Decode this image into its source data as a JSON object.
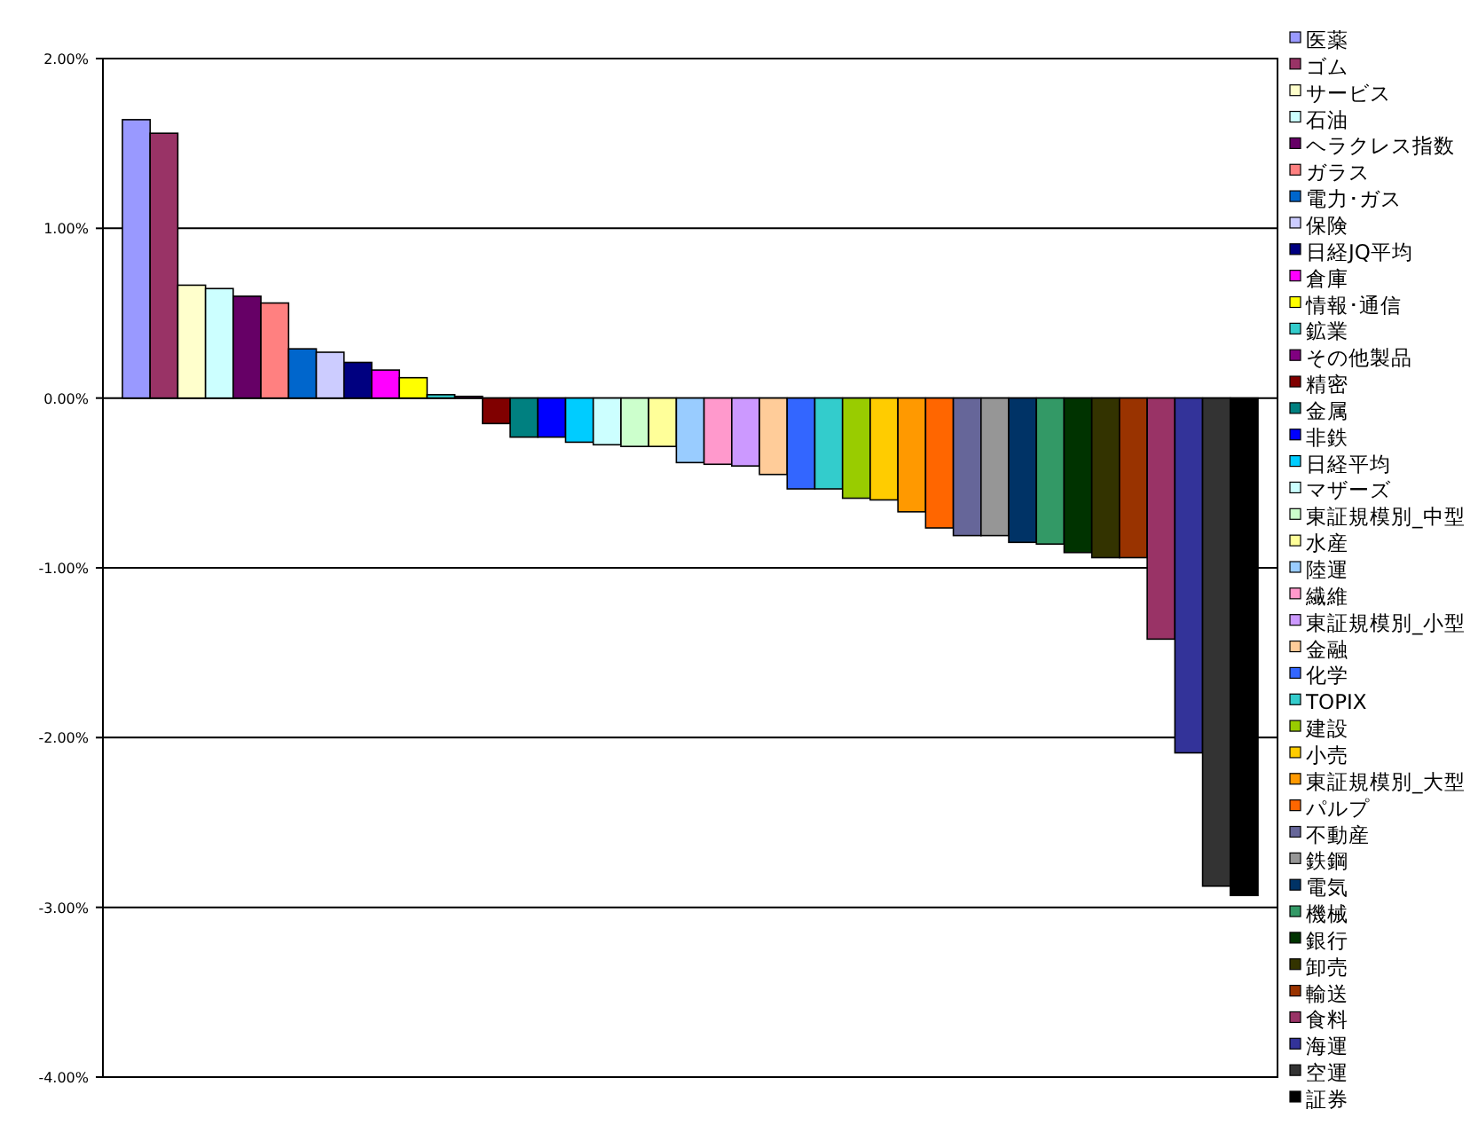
{
  "chart_data": {
    "type": "bar",
    "categories": [
      null
    ],
    "ylim": [
      -4,
      2
    ],
    "yticks": [
      {
        "value": -4,
        "label": "-4.00%"
      },
      {
        "value": -3,
        "label": "-3.00%"
      },
      {
        "value": -2,
        "label": "-2.00%"
      },
      {
        "value": -1,
        "label": "-1.00%"
      },
      {
        "value": 0,
        "label": "0.00%"
      },
      {
        "value": 1,
        "label": "1.00%"
      },
      {
        "value": 2,
        "label": "2.00%"
      }
    ],
    "grid": "y",
    "legend": "right",
    "tick_labels": "y",
    "series": [
      {
        "name": "医薬",
        "color": "#9999ff",
        "values": [
          1.64
        ]
      },
      {
        "name": "ゴム",
        "color": "#993366",
        "values": [
          1.56
        ]
      },
      {
        "name": "サービス",
        "color": "#ffffcc",
        "values": [
          0.665
        ]
      },
      {
        "name": "石油",
        "color": "#ccffff",
        "values": [
          0.645
        ]
      },
      {
        "name": "ヘラクレス指数",
        "color": "#660066",
        "values": [
          0.6
        ]
      },
      {
        "name": "ガラス",
        "color": "#ff8080",
        "values": [
          0.56
        ]
      },
      {
        "name": "電力･ガス",
        "color": "#0066cc",
        "values": [
          0.29
        ]
      },
      {
        "name": "保険",
        "color": "#ccccff",
        "values": [
          0.27
        ]
      },
      {
        "name": "日経JQ平均",
        "color": "#000080",
        "values": [
          0.21
        ]
      },
      {
        "name": "倉庫",
        "color": "#ff00ff",
        "values": [
          0.165
        ]
      },
      {
        "name": "情報･通信",
        "color": "#ffff00",
        "values": [
          0.12
        ]
      },
      {
        "name": "鉱業",
        "color": "#33cccc",
        "values": [
          0.02
        ]
      },
      {
        "name": "その他製品",
        "color": "#800080",
        "values": [
          0.01
        ]
      },
      {
        "name": "精密",
        "color": "#800000",
        "values": [
          -0.15
        ]
      },
      {
        "name": "金属",
        "color": "#008080",
        "values": [
          -0.23
        ]
      },
      {
        "name": "非鉄",
        "color": "#0000ff",
        "values": [
          -0.23
        ]
      },
      {
        "name": "日経平均",
        "color": "#00ccff",
        "values": [
          -0.26
        ]
      },
      {
        "name": "マザーズ",
        "color": "#ccffff",
        "values": [
          -0.275
        ]
      },
      {
        "name": "東証規模別_中型",
        "color": "#ccffcc",
        "values": [
          -0.285
        ]
      },
      {
        "name": "水産",
        "color": "#ffff99",
        "values": [
          -0.285
        ]
      },
      {
        "name": "陸運",
        "color": "#99ccff",
        "values": [
          -0.38
        ]
      },
      {
        "name": "繊維",
        "color": "#ff99cc",
        "values": [
          -0.39
        ]
      },
      {
        "name": "東証規模別_小型",
        "color": "#cc99ff",
        "values": [
          -0.4
        ]
      },
      {
        "name": "金融",
        "color": "#ffcc99",
        "values": [
          -0.45
        ]
      },
      {
        "name": "化学",
        "color": "#3366ff",
        "values": [
          -0.535
        ]
      },
      {
        "name": "TOPIX",
        "color": "#33cccc",
        "values": [
          -0.535
        ]
      },
      {
        "name": "建設",
        "color": "#99cc00",
        "values": [
          -0.59
        ]
      },
      {
        "name": "小売",
        "color": "#ffcc00",
        "values": [
          -0.6
        ]
      },
      {
        "name": "東証規模別_大型",
        "color": "#ff9900",
        "values": [
          -0.67
        ]
      },
      {
        "name": "パルプ",
        "color": "#ff6600",
        "values": [
          -0.765
        ]
      },
      {
        "name": "不動産",
        "color": "#666699",
        "values": [
          -0.81
        ]
      },
      {
        "name": "鉄鋼",
        "color": "#969696",
        "values": [
          -0.81
        ]
      },
      {
        "name": "電気",
        "color": "#003366",
        "values": [
          -0.85
        ]
      },
      {
        "name": "機械",
        "color": "#339966",
        "values": [
          -0.86
        ]
      },
      {
        "name": "銀行",
        "color": "#003300",
        "values": [
          -0.91
        ]
      },
      {
        "name": "卸売",
        "color": "#333300",
        "values": [
          -0.94
        ]
      },
      {
        "name": "輸送",
        "color": "#993300",
        "values": [
          -0.94
        ]
      },
      {
        "name": "食料",
        "color": "#993366",
        "values": [
          -1.42
        ]
      },
      {
        "name": "海運",
        "color": "#333399",
        "values": [
          -2.09
        ]
      },
      {
        "name": "空運",
        "color": "#333333",
        "values": [
          -2.875
        ]
      },
      {
        "name": "証券",
        "color": "#000000",
        "values": [
          -2.93
        ]
      }
    ]
  }
}
